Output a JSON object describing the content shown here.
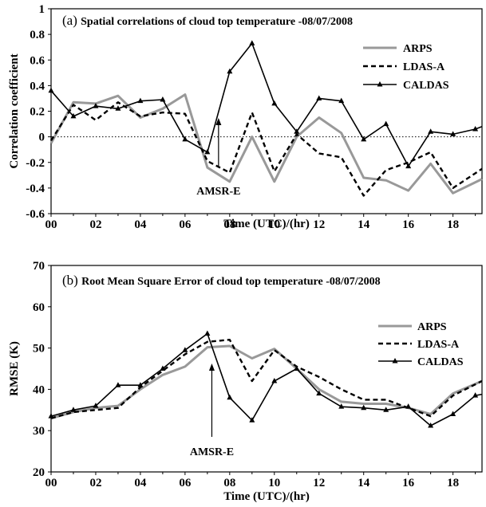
{
  "chart_data": [
    {
      "type": "line",
      "title_prefix": "(a)",
      "title": "Spatial correlations of cloud top temperature -08/07/2008",
      "xlabel": "Time (UTC)/(hr)",
      "ylabel": "Correlation coefficient",
      "xlim": [
        0,
        19.3
      ],
      "ylim": [
        -0.6,
        1.0
      ],
      "xticks": [
        "00",
        "02",
        "04",
        "06",
        "08",
        "10",
        "12",
        "14",
        "16",
        "18"
      ],
      "yticks": [
        "-0.6",
        "-0.4",
        "-0.2",
        "0",
        "0.2",
        "0.4",
        "0.6",
        "0.8",
        "1"
      ],
      "zero_line": true,
      "legend_position": "top-right",
      "annotation": {
        "text": "AMSR-E",
        "x": 7.5
      },
      "series": [
        {
          "name": "ARPS",
          "color": "#999999",
          "style": "solid",
          "marker": "none",
          "x": [
            0,
            1,
            2,
            3,
            4,
            5,
            6,
            7,
            8,
            9,
            10,
            11,
            12,
            13,
            14,
            15,
            16,
            17,
            18,
            19.3
          ],
          "y": [
            -0.05,
            0.27,
            0.26,
            0.32,
            0.15,
            0.22,
            0.33,
            -0.24,
            -0.35,
            0.0,
            -0.35,
            0.0,
            0.15,
            0.03,
            -0.32,
            -0.34,
            -0.42,
            -0.21,
            -0.44,
            -0.33
          ]
        },
        {
          "name": "LDAS-A",
          "color": "#000000",
          "style": "dashed",
          "marker": "none",
          "x": [
            0,
            1,
            2,
            3,
            4,
            5,
            6,
            7,
            8,
            9,
            10,
            11,
            12,
            13,
            14,
            15,
            16,
            17,
            18,
            19.3
          ],
          "y": [
            -0.03,
            0.25,
            0.13,
            0.27,
            0.16,
            0.19,
            0.18,
            -0.19,
            -0.28,
            0.19,
            -0.27,
            0.02,
            -0.13,
            -0.16,
            -0.46,
            -0.26,
            -0.2,
            -0.12,
            -0.4,
            -0.25
          ]
        },
        {
          "name": "CALDAS",
          "color": "#000000",
          "style": "solid",
          "marker": "triangle",
          "x": [
            0,
            1,
            2,
            3,
            4,
            5,
            6,
            7,
            8,
            9,
            10,
            11,
            12,
            13,
            14,
            15,
            16,
            17,
            18,
            19,
            19.3
          ],
          "y": [
            0.36,
            0.16,
            0.24,
            0.22,
            0.28,
            0.29,
            -0.02,
            -0.12,
            0.51,
            0.73,
            0.26,
            0.04,
            0.3,
            0.28,
            -0.02,
            0.1,
            -0.23,
            0.04,
            0.02,
            0.06,
            0.08
          ]
        }
      ]
    },
    {
      "type": "line",
      "title_prefix": "(b)",
      "title": "Root Mean Square Error of cloud top temperature -08/07/2008",
      "xlabel": "Time (UTC)/(hr)",
      "ylabel": "RMSE (K)",
      "xlim": [
        0,
        19.3
      ],
      "ylim": [
        20,
        70
      ],
      "xticks": [
        "00",
        "02",
        "04",
        "06",
        "08",
        "10",
        "12",
        "14",
        "16",
        "18"
      ],
      "yticks": [
        "20",
        "30",
        "40",
        "50",
        "60",
        "70"
      ],
      "zero_line": false,
      "legend_position": "right",
      "annotation": {
        "text": "AMSR-E",
        "x": 7.2
      },
      "series": [
        {
          "name": "ARPS",
          "color": "#999999",
          "style": "solid",
          "marker": "none",
          "x": [
            0,
            1,
            2,
            3,
            4,
            5,
            6,
            7,
            8,
            9,
            10,
            11,
            12,
            13,
            14,
            15,
            16,
            17,
            18,
            19.3
          ],
          "y": [
            33,
            34.5,
            35.5,
            36,
            40,
            43.5,
            45.5,
            50.2,
            50.5,
            47.5,
            49.8,
            45,
            40,
            37,
            36.5,
            36.5,
            35.5,
            34,
            39,
            42
          ]
        },
        {
          "name": "LDAS-A",
          "color": "#000000",
          "style": "dashed",
          "marker": "none",
          "x": [
            0,
            1,
            2,
            3,
            4,
            5,
            6,
            7,
            8,
            9,
            10,
            11,
            12,
            13,
            14,
            15,
            16,
            17,
            18,
            19.3
          ],
          "y": [
            33,
            34.5,
            35,
            35.5,
            40.5,
            44.5,
            48.5,
            51.5,
            52,
            42,
            49.5,
            45.5,
            43,
            40,
            37.5,
            37.5,
            35.5,
            33.5,
            38.5,
            42
          ]
        },
        {
          "name": "CALDAS",
          "color": "#000000",
          "style": "solid",
          "marker": "triangle",
          "x": [
            0,
            1,
            2,
            3,
            4,
            5,
            6,
            7,
            8,
            9,
            10,
            11,
            12,
            13,
            14,
            15,
            16,
            17,
            18,
            19,
            19.3
          ],
          "y": [
            33.5,
            35,
            36,
            41,
            41,
            45,
            49.5,
            53.5,
            38,
            32.5,
            42,
            45,
            39,
            35.8,
            35.5,
            35,
            35.8,
            31.2,
            34,
            38.5,
            38.8
          ]
        }
      ]
    }
  ]
}
